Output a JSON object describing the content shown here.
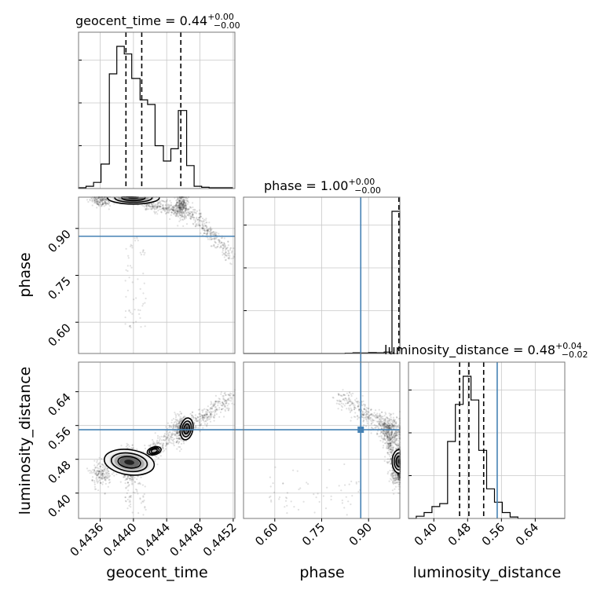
{
  "chart_data": {
    "type": "corner",
    "parameters": [
      "geocent_time",
      "phase",
      "luminosity_distance"
    ],
    "truths": {
      "phase": 0.875,
      "luminosity_distance": 0.55
    },
    "titles": [
      {
        "param": "geocent_time",
        "median": "0.44",
        "plus": "+0.00",
        "minus": "−0.00"
      },
      {
        "param": "phase",
        "median": "1.00",
        "plus": "+0.00",
        "minus": "−0.00"
      },
      {
        "param": "luminosity_distance",
        "median": "0.48",
        "plus": "+0.04",
        "minus": "−0.02"
      }
    ],
    "axes": {
      "geocent_time": {
        "range": [
          0.44334,
          0.44522
        ],
        "ticks": [
          "0.4436",
          "0.4440",
          "0.4444",
          "0.4448",
          "0.4452"
        ],
        "tick_values": [
          0.4436,
          0.444,
          0.4444,
          0.4448,
          0.4452
        ]
      },
      "phase": {
        "range": [
          0.5,
          1.0
        ],
        "ticks": [
          "0.60",
          "0.75",
          "0.90"
        ],
        "tick_values": [
          0.6,
          0.75,
          0.9
        ]
      },
      "luminosity_distance": {
        "range": [
          0.34,
          0.71
        ],
        "ticks": [
          "0.40",
          "0.48",
          "0.56",
          "0.64"
        ],
        "tick_values": [
          0.4,
          0.48,
          0.56,
          0.64
        ]
      }
    },
    "histograms": {
      "geocent_time": {
        "bin_edges": [
          0.44334,
          0.44343,
          0.44352,
          0.44361,
          0.44371,
          0.4438,
          0.44389,
          0.44398,
          0.44408,
          0.44417,
          0.44426,
          0.44436,
          0.44445,
          0.44454,
          0.44464,
          0.44473,
          0.44482,
          0.44491,
          0.445,
          0.4451,
          0.44519
        ],
        "counts": [
          0.5,
          1.5,
          4,
          16,
          75,
          93,
          88,
          72,
          58,
          55,
          28,
          18,
          26,
          51,
          15,
          1.5,
          0.8,
          0.5,
          0.5,
          0.5
        ],
        "quantiles": [
          0.44391,
          0.4441,
          0.44457
        ]
      },
      "phase": {
        "bin_edges": [
          0.5,
          0.525,
          0.55,
          0.575,
          0.6,
          0.625,
          0.65,
          0.675,
          0.7,
          0.725,
          0.75,
          0.775,
          0.8,
          0.825,
          0.85,
          0.875,
          0.9,
          0.925,
          0.95,
          0.975,
          1.0
        ],
        "counts": [
          0,
          0,
          0,
          0,
          0,
          0,
          0,
          0,
          0,
          0,
          0,
          0,
          0,
          0.2,
          0.5,
          0.3,
          0.6,
          0.5,
          1,
          98
        ],
        "quantiles": [
          0.999,
          1.0,
          1.0
        ]
      },
      "luminosity_distance": {
        "bin_edges": [
          0.34,
          0.3585,
          0.377,
          0.3955,
          0.414,
          0.4325,
          0.451,
          0.4695,
          0.488,
          0.5065,
          0.525,
          0.5435,
          0.562,
          0.5805,
          0.599,
          0.6175,
          0.636,
          0.6545,
          0.673,
          0.6915,
          0.71
        ],
        "counts": [
          0,
          1.5,
          4,
          8,
          10,
          52,
          77,
          96,
          80,
          46,
          20,
          11,
          4,
          1,
          0,
          0,
          0,
          0,
          0,
          0
        ],
        "quantiles": [
          0.461,
          0.483,
          0.518
        ]
      }
    }
  }
}
